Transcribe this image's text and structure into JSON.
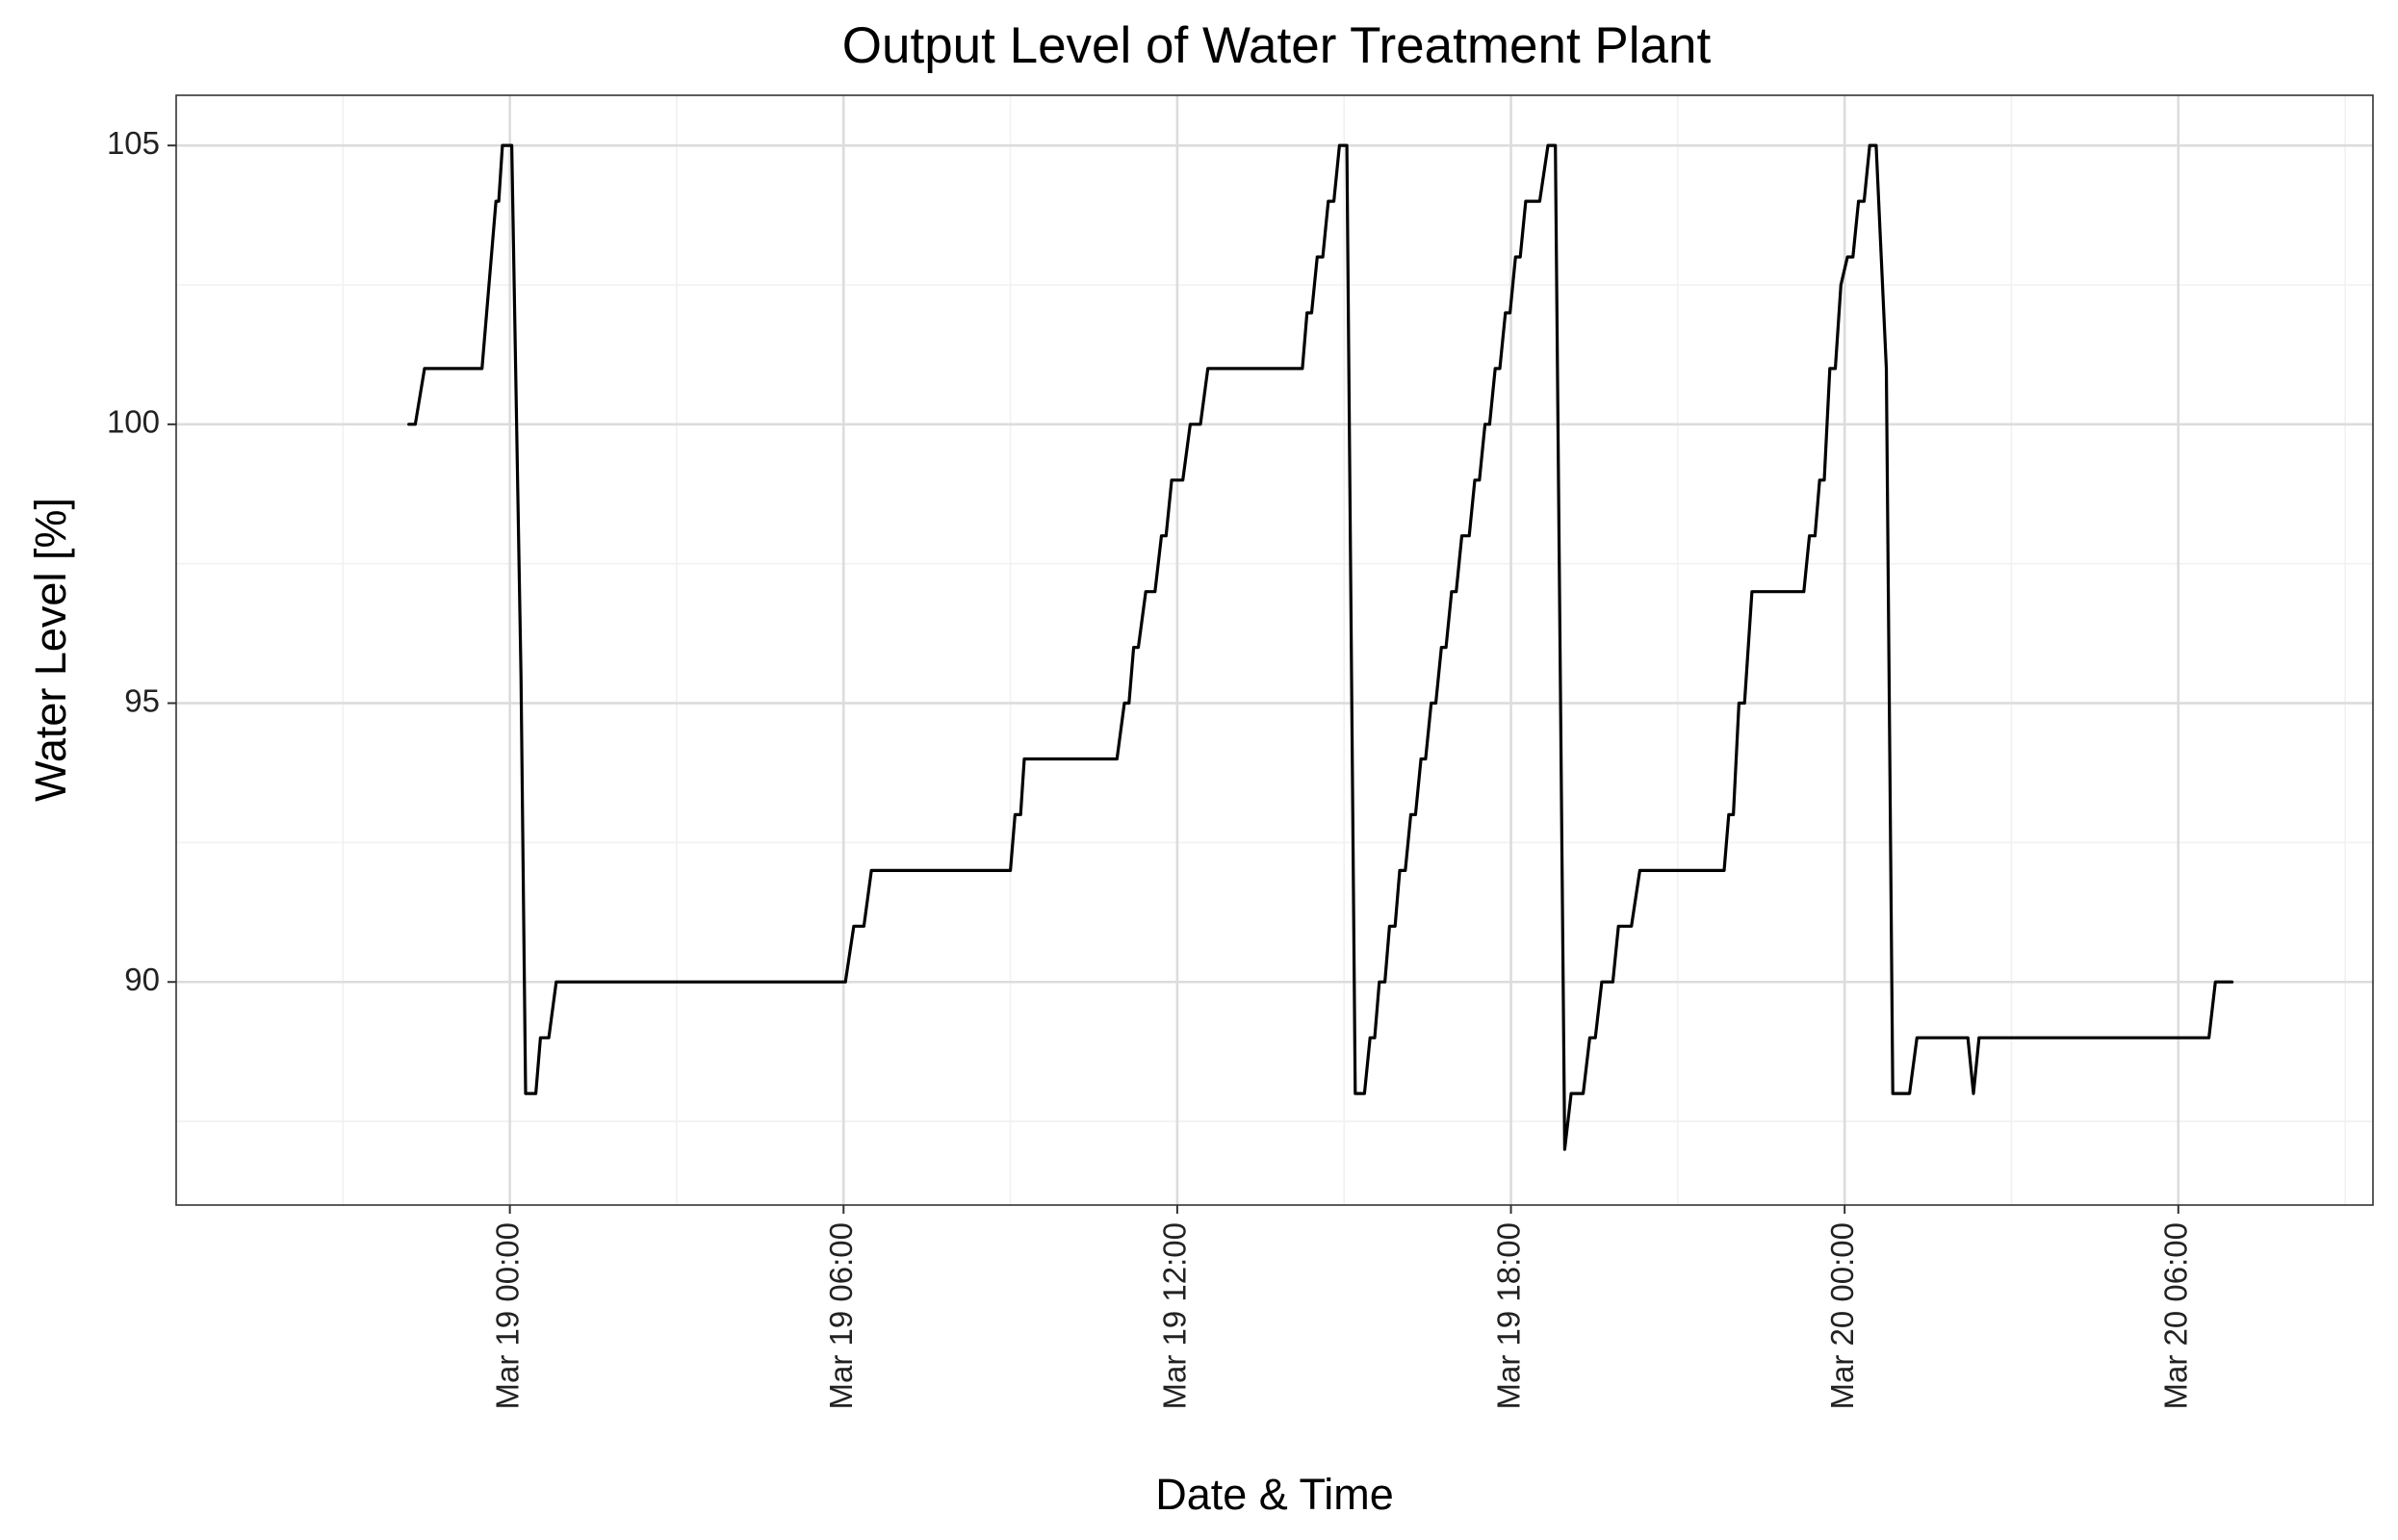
{
  "chart_data": {
    "type": "line",
    "title": "Output Level of Water Treatment Plant",
    "xlabel": "Date & Time",
    "ylabel": "Water Level [%]",
    "x_unit": "datetime",
    "xlim": [
      "2024-03-18T18:00",
      "2024-03-20T09:30"
    ],
    "ylim": [
      86.0,
      105.9
    ],
    "x_ticks": [
      {
        "t": "2024-03-19T00:00",
        "label": "Mar 19 00:00"
      },
      {
        "t": "2024-03-19T06:00",
        "label": "Mar 19 06:00"
      },
      {
        "t": "2024-03-19T12:00",
        "label": "Mar 19 12:00"
      },
      {
        "t": "2024-03-19T18:00",
        "label": "Mar 19 18:00"
      },
      {
        "t": "2024-03-20T00:00",
        "label": "Mar 20 00:00"
      },
      {
        "t": "2024-03-20T06:00",
        "label": "Mar 20 06:00"
      }
    ],
    "x_minor_ticks": [
      "2024-03-18T21:00",
      "2024-03-19T03:00",
      "2024-03-19T09:00",
      "2024-03-19T15:00",
      "2024-03-19T21:00",
      "2024-03-20T03:00",
      "2024-03-20T09:00"
    ],
    "y_ticks": [
      90,
      95,
      100,
      105
    ],
    "y_minor_ticks": [
      87.5,
      92.5,
      97.5,
      102.5
    ],
    "grid": true,
    "series": [
      {
        "color": "#000000",
        "points": [
          [
            "2024-03-18T22:11",
            100
          ],
          [
            "2024-03-18T22:18",
            100
          ],
          [
            "2024-03-18T22:28",
            101
          ],
          [
            "2024-03-18T23:30",
            101
          ],
          [
            "2024-03-18T23:45",
            104
          ],
          [
            "2024-03-18T23:48",
            104
          ],
          [
            "2024-03-18T23:52",
            105
          ],
          [
            "2024-03-19T00:02",
            105
          ],
          [
            "2024-03-19T00:12",
            95.5
          ],
          [
            "2024-03-19T00:17",
            88
          ],
          [
            "2024-03-19T00:28",
            88
          ],
          [
            "2024-03-19T00:33",
            89
          ],
          [
            "2024-03-19T00:42",
            89
          ],
          [
            "2024-03-19T00:50",
            90
          ],
          [
            "2024-03-19T06:02",
            90
          ],
          [
            "2024-03-19T06:11",
            91
          ],
          [
            "2024-03-19T06:22",
            91
          ],
          [
            "2024-03-19T06:30",
            92
          ],
          [
            "2024-03-19T09:00",
            92
          ],
          [
            "2024-03-19T09:05",
            93
          ],
          [
            "2024-03-19T09:11",
            93
          ],
          [
            "2024-03-19T09:15",
            94
          ],
          [
            "2024-03-19T10:55",
            94
          ],
          [
            "2024-03-19T11:03",
            95
          ],
          [
            "2024-03-19T11:08",
            95
          ],
          [
            "2024-03-19T11:13",
            96
          ],
          [
            "2024-03-19T11:18",
            96
          ],
          [
            "2024-03-19T11:26",
            97
          ],
          [
            "2024-03-19T11:36",
            97
          ],
          [
            "2024-03-19T11:43",
            98
          ],
          [
            "2024-03-19T11:48",
            98
          ],
          [
            "2024-03-19T11:54",
            99
          ],
          [
            "2024-03-19T12:06",
            99
          ],
          [
            "2024-03-19T12:14",
            100
          ],
          [
            "2024-03-19T12:25",
            100
          ],
          [
            "2024-03-19T12:33",
            101
          ],
          [
            "2024-03-19T14:15",
            101
          ],
          [
            "2024-03-19T14:20",
            102
          ],
          [
            "2024-03-19T14:25",
            102
          ],
          [
            "2024-03-19T14:31",
            103
          ],
          [
            "2024-03-19T14:37",
            103
          ],
          [
            "2024-03-19T14:43",
            104
          ],
          [
            "2024-03-19T14:49",
            104
          ],
          [
            "2024-03-19T14:55",
            105
          ],
          [
            "2024-03-19T15:03",
            105
          ],
          [
            "2024-03-19T15:12",
            88
          ],
          [
            "2024-03-19T15:22",
            88
          ],
          [
            "2024-03-19T15:28",
            89
          ],
          [
            "2024-03-19T15:33",
            89
          ],
          [
            "2024-03-19T15:38",
            90
          ],
          [
            "2024-03-19T15:44",
            90
          ],
          [
            "2024-03-19T15:49",
            91
          ],
          [
            "2024-03-19T15:55",
            91
          ],
          [
            "2024-03-19T16:00",
            92
          ],
          [
            "2024-03-19T16:06",
            92
          ],
          [
            "2024-03-19T16:12",
            93
          ],
          [
            "2024-03-19T16:17",
            93
          ],
          [
            "2024-03-19T16:23",
            94
          ],
          [
            "2024-03-19T16:28",
            94
          ],
          [
            "2024-03-19T16:34",
            95
          ],
          [
            "2024-03-19T16:39",
            95
          ],
          [
            "2024-03-19T16:45",
            96
          ],
          [
            "2024-03-19T16:50",
            96
          ],
          [
            "2024-03-19T16:56",
            97
          ],
          [
            "2024-03-19T17:01",
            97
          ],
          [
            "2024-03-19T17:07",
            98
          ],
          [
            "2024-03-19T17:15",
            98
          ],
          [
            "2024-03-19T17:21",
            99
          ],
          [
            "2024-03-19T17:26",
            99
          ],
          [
            "2024-03-19T17:32",
            100
          ],
          [
            "2024-03-19T17:37",
            100
          ],
          [
            "2024-03-19T17:43",
            101
          ],
          [
            "2024-03-19T17:48",
            101
          ],
          [
            "2024-03-19T17:54",
            102
          ],
          [
            "2024-03-19T17:59",
            102
          ],
          [
            "2024-03-19T18:05",
            103
          ],
          [
            "2024-03-19T18:10",
            103
          ],
          [
            "2024-03-19T18:16",
            104
          ],
          [
            "2024-03-19T18:31",
            104
          ],
          [
            "2024-03-19T18:40",
            105
          ],
          [
            "2024-03-19T18:48",
            105
          ],
          [
            "2024-03-19T18:58",
            87
          ],
          [
            "2024-03-19T19:05",
            88
          ],
          [
            "2024-03-19T19:18",
            88
          ],
          [
            "2024-03-19T19:25",
            89
          ],
          [
            "2024-03-19T19:31",
            89
          ],
          [
            "2024-03-19T19:38",
            90
          ],
          [
            "2024-03-19T19:50",
            90
          ],
          [
            "2024-03-19T19:56",
            91
          ],
          [
            "2024-03-19T20:10",
            91
          ],
          [
            "2024-03-19T20:19",
            92
          ],
          [
            "2024-03-19T21:50",
            92
          ],
          [
            "2024-03-19T21:55",
            93
          ],
          [
            "2024-03-19T22:00",
            93
          ],
          [
            "2024-03-19T22:06",
            95
          ],
          [
            "2024-03-19T22:12",
            95
          ],
          [
            "2024-03-19T22:20",
            97
          ],
          [
            "2024-03-19T23:16",
            97
          ],
          [
            "2024-03-19T23:22",
            98
          ],
          [
            "2024-03-19T23:28",
            98
          ],
          [
            "2024-03-19T23:33",
            99
          ],
          [
            "2024-03-19T23:38",
            99
          ],
          [
            "2024-03-19T23:44",
            101
          ],
          [
            "2024-03-19T23:50",
            101
          ],
          [
            "2024-03-19T23:56",
            102.5
          ],
          [
            "2024-03-20T00:03",
            103
          ],
          [
            "2024-03-20T00:09",
            103
          ],
          [
            "2024-03-20T00:15",
            104
          ],
          [
            "2024-03-20T00:21",
            104
          ],
          [
            "2024-03-20T00:27",
            105
          ],
          [
            "2024-03-20T00:34",
            105
          ],
          [
            "2024-03-20T00:45",
            101
          ],
          [
            "2024-03-20T00:52",
            88
          ],
          [
            "2024-03-20T01:10",
            88
          ],
          [
            "2024-03-20T01:18",
            89
          ],
          [
            "2024-03-20T02:13",
            89
          ],
          [
            "2024-03-20T02:19",
            88
          ],
          [
            "2024-03-20T02:25",
            89
          ],
          [
            "2024-03-20T06:33",
            89
          ],
          [
            "2024-03-20T06:40",
            90
          ],
          [
            "2024-03-20T06:58",
            90
          ]
        ]
      }
    ]
  }
}
